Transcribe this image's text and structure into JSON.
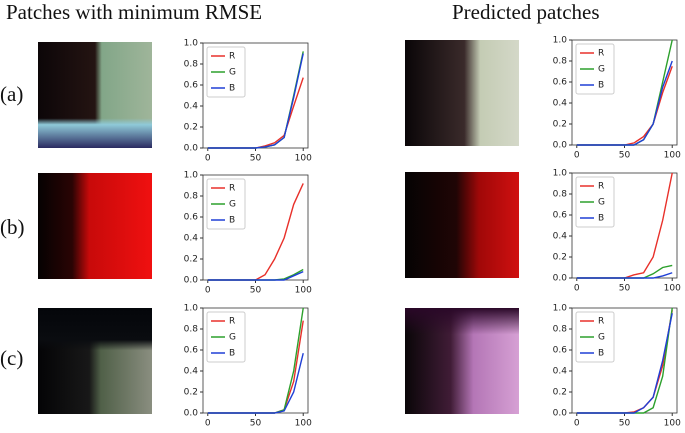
{
  "header": {
    "left": "Patches with minimum RMSE",
    "right": "Predicted patches"
  },
  "rows": [
    "(a)",
    "(b)",
    "(c)"
  ],
  "chart_data": [
    {
      "type": "line",
      "x": [
        0,
        10,
        20,
        30,
        40,
        50,
        60,
        70,
        80,
        90,
        100
      ],
      "xlim": [
        -5,
        105
      ],
      "ylim": [
        0,
        1
      ],
      "xticks": [
        0,
        50,
        100
      ],
      "yticks": [
        {
          "value": 0,
          "label": "0.0"
        },
        {
          "value": 0.2,
          "label": "0.2"
        },
        {
          "value": 0.4,
          "label": "0.4"
        },
        {
          "value": 0.6,
          "label": "0.6"
        },
        {
          "value": 0.8,
          "label": "0.8"
        },
        {
          "value": 1,
          "label": "1.0"
        }
      ],
      "series": [
        {
          "name": "R",
          "color": "#e8302a",
          "values": [
            0,
            0,
            0,
            0,
            0,
            0,
            0.02,
            0.05,
            0.12,
            0.4,
            0.67
          ]
        },
        {
          "name": "G",
          "color": "#2ca02c",
          "values": [
            0,
            0,
            0,
            0,
            0,
            0,
            0.01,
            0.03,
            0.1,
            0.5,
            0.92
          ]
        },
        {
          "name": "B",
          "color": "#1f3fd6",
          "values": [
            0,
            0,
            0,
            0,
            0,
            0,
            0.01,
            0.03,
            0.1,
            0.48,
            0.9
          ]
        }
      ]
    },
    {
      "type": "line",
      "x": [
        0,
        10,
        20,
        30,
        40,
        50,
        60,
        70,
        80,
        90,
        100
      ],
      "xlim": [
        -5,
        105
      ],
      "ylim": [
        0,
        1
      ],
      "xticks": [
        0,
        50,
        100
      ],
      "yticks": [
        {
          "value": 0,
          "label": "0.0"
        },
        {
          "value": 0.2,
          "label": "0.2"
        },
        {
          "value": 0.4,
          "label": "0.4"
        },
        {
          "value": 0.6,
          "label": "0.6"
        },
        {
          "value": 0.8,
          "label": "0.8"
        },
        {
          "value": 1,
          "label": "1.0"
        }
      ],
      "series": [
        {
          "name": "R",
          "color": "#e8302a",
          "values": [
            0,
            0,
            0,
            0,
            0,
            0,
            0.02,
            0.08,
            0.2,
            0.5,
            0.75
          ]
        },
        {
          "name": "G",
          "color": "#2ca02c",
          "values": [
            0,
            0,
            0,
            0,
            0,
            0,
            0,
            0.05,
            0.2,
            0.6,
            1.0
          ]
        },
        {
          "name": "B",
          "color": "#1f3fd6",
          "values": [
            0,
            0,
            0,
            0,
            0,
            0,
            0,
            0.05,
            0.2,
            0.55,
            0.8
          ]
        }
      ]
    },
    {
      "type": "line",
      "x": [
        0,
        10,
        20,
        30,
        40,
        50,
        60,
        70,
        80,
        90,
        100
      ],
      "xlim": [
        -5,
        105
      ],
      "ylim": [
        0,
        1
      ],
      "xticks": [
        0,
        50,
        100
      ],
      "yticks": [
        {
          "value": 0,
          "label": "0.0"
        },
        {
          "value": 0.2,
          "label": "0.2"
        },
        {
          "value": 0.4,
          "label": "0.4"
        },
        {
          "value": 0.6,
          "label": "0.6"
        },
        {
          "value": 0.8,
          "label": "0.8"
        },
        {
          "value": 1,
          "label": "1.0"
        }
      ],
      "series": [
        {
          "name": "R",
          "color": "#e8302a",
          "values": [
            0,
            0,
            0,
            0,
            0,
            0,
            0.05,
            0.2,
            0.4,
            0.72,
            0.92
          ]
        },
        {
          "name": "G",
          "color": "#2ca02c",
          "values": [
            0,
            0,
            0,
            0,
            0,
            0,
            0,
            0,
            0.01,
            0.05,
            0.1
          ]
        },
        {
          "name": "B",
          "color": "#1f3fd6",
          "values": [
            0,
            0,
            0,
            0,
            0,
            0,
            0,
            0,
            0,
            0.04,
            0.08
          ]
        }
      ]
    },
    {
      "type": "line",
      "x": [
        0,
        10,
        20,
        30,
        40,
        50,
        60,
        70,
        80,
        90,
        100
      ],
      "xlim": [
        -5,
        105
      ],
      "ylim": [
        0,
        1
      ],
      "xticks": [
        0,
        50,
        100
      ],
      "yticks": [
        {
          "value": 0,
          "label": "0.0"
        },
        {
          "value": 0.2,
          "label": "0.2"
        },
        {
          "value": 0.4,
          "label": "0.4"
        },
        {
          "value": 0.6,
          "label": "0.6"
        },
        {
          "value": 0.8,
          "label": "0.8"
        },
        {
          "value": 1,
          "label": "1.0"
        }
      ],
      "series": [
        {
          "name": "R",
          "color": "#e8302a",
          "values": [
            0,
            0,
            0,
            0,
            0,
            0,
            0.03,
            0.05,
            0.2,
            0.55,
            1.0
          ]
        },
        {
          "name": "G",
          "color": "#2ca02c",
          "values": [
            0,
            0,
            0,
            0,
            0,
            0,
            0,
            0,
            0.04,
            0.1,
            0.12
          ]
        },
        {
          "name": "B",
          "color": "#1f3fd6",
          "values": [
            0,
            0,
            0,
            0,
            0,
            0,
            0,
            0,
            0,
            0.02,
            0.05
          ]
        }
      ]
    },
    {
      "type": "line",
      "x": [
        0,
        10,
        20,
        30,
        40,
        50,
        60,
        70,
        80,
        90,
        100
      ],
      "xlim": [
        -5,
        105
      ],
      "ylim": [
        0,
        1
      ],
      "xticks": [
        0,
        50,
        100
      ],
      "yticks": [
        {
          "value": 0,
          "label": "0.0"
        },
        {
          "value": 0.2,
          "label": "0.2"
        },
        {
          "value": 0.4,
          "label": "0.4"
        },
        {
          "value": 0.6,
          "label": "0.6"
        },
        {
          "value": 0.8,
          "label": "0.8"
        },
        {
          "value": 1,
          "label": "1.0"
        }
      ],
      "series": [
        {
          "name": "R",
          "color": "#e8302a",
          "values": [
            0,
            0,
            0,
            0,
            0,
            0,
            0,
            0,
            0.03,
            0.3,
            0.88
          ]
        },
        {
          "name": "G",
          "color": "#2ca02c",
          "values": [
            0,
            0,
            0,
            0,
            0,
            0,
            0,
            0,
            0.03,
            0.4,
            1.0
          ]
        },
        {
          "name": "B",
          "color": "#1f3fd6",
          "values": [
            0,
            0,
            0,
            0,
            0,
            0,
            0,
            0,
            0.02,
            0.2,
            0.57
          ]
        }
      ]
    },
    {
      "type": "line",
      "x": [
        0,
        10,
        20,
        30,
        40,
        50,
        60,
        70,
        80,
        90,
        100
      ],
      "xlim": [
        -5,
        105
      ],
      "ylim": [
        0,
        1
      ],
      "xticks": [
        0,
        50,
        100
      ],
      "yticks": [
        {
          "value": 0,
          "label": "0.0"
        },
        {
          "value": 0.2,
          "label": "0.2"
        },
        {
          "value": 0.4,
          "label": "0.4"
        },
        {
          "value": 0.6,
          "label": "0.6"
        },
        {
          "value": 0.8,
          "label": "0.8"
        },
        {
          "value": 1,
          "label": "1.0"
        }
      ],
      "series": [
        {
          "name": "R",
          "color": "#e8302a",
          "values": [
            0,
            0,
            0,
            0,
            0,
            0,
            0.01,
            0.05,
            0.15,
            0.45,
            0.98
          ]
        },
        {
          "name": "G",
          "color": "#2ca02c",
          "values": [
            0,
            0,
            0,
            0,
            0,
            0,
            0,
            0,
            0.05,
            0.35,
            1.0
          ]
        },
        {
          "name": "B",
          "color": "#1f3fd6",
          "values": [
            0,
            0,
            0,
            0,
            0,
            0,
            0,
            0.05,
            0.15,
            0.5,
            0.95
          ]
        }
      ]
    }
  ]
}
